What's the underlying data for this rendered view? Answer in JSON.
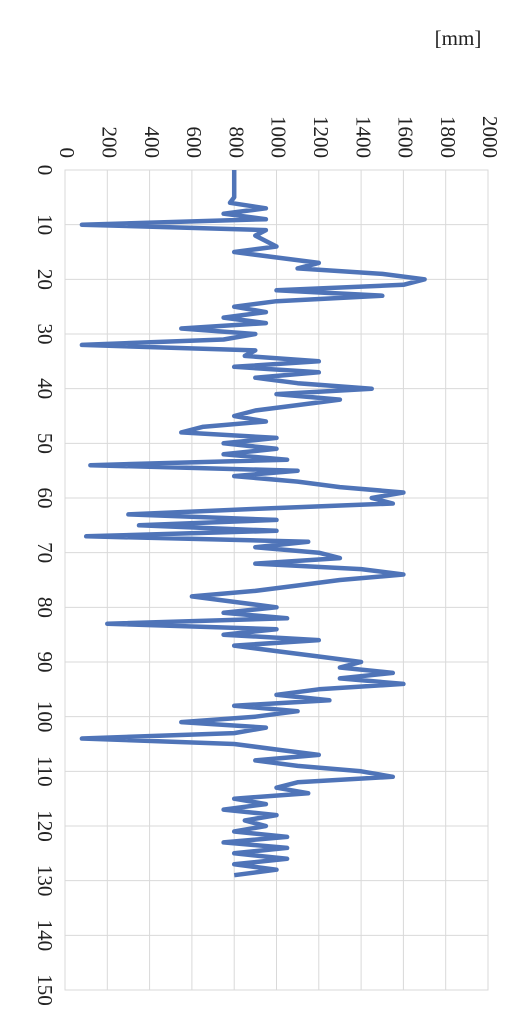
{
  "chart_data": {
    "type": "line",
    "y_label": "[mm]",
    "x": [
      0,
      5,
      6,
      7,
      8,
      9,
      10,
      11,
      12,
      14,
      15,
      17,
      18,
      19,
      20,
      21,
      22,
      23,
      24,
      25,
      26,
      27,
      28,
      29,
      30,
      31,
      32,
      33,
      34,
      35,
      36,
      37,
      38,
      39,
      40,
      41,
      42,
      43,
      44,
      45,
      46,
      47,
      48,
      49,
      50,
      51,
      52,
      53,
      54,
      55,
      56,
      57,
      58,
      59,
      60,
      61,
      62,
      63,
      64,
      65,
      66,
      67,
      68,
      69,
      70,
      71,
      72,
      73,
      74,
      75,
      76,
      77,
      78,
      79,
      80,
      81,
      82,
      83,
      84,
      85,
      86,
      87,
      88,
      89,
      90,
      91,
      92,
      93,
      94,
      95,
      96,
      97,
      98,
      99,
      100,
      101,
      102,
      103,
      104,
      105,
      106,
      107,
      108,
      109,
      110,
      111,
      112,
      113,
      114,
      115,
      116,
      117,
      118,
      119,
      120,
      121,
      122,
      123,
      124,
      125,
      126,
      127,
      128,
      129
    ],
    "series": [
      {
        "color": "#4f74b8",
        "values": [
          800,
          800,
          780,
          950,
          750,
          950,
          80,
          950,
          900,
          1000,
          800,
          1200,
          1100,
          1500,
          1700,
          1600,
          1000,
          1500,
          1000,
          800,
          950,
          750,
          950,
          550,
          900,
          750,
          80,
          900,
          850,
          1200,
          800,
          1200,
          900,
          1100,
          1450,
          1000,
          1300,
          1100,
          900,
          800,
          950,
          650,
          550,
          1000,
          750,
          1000,
          750,
          1050,
          120,
          1100,
          800,
          1100,
          1300,
          1600,
          1450,
          1550,
          900,
          300,
          1000,
          350,
          1000,
          100,
          1150,
          900,
          1200,
          1300,
          900,
          1400,
          1600,
          1300,
          1100,
          900,
          600,
          800,
          1000,
          750,
          1050,
          200,
          1000,
          750,
          1200,
          800,
          1000,
          1200,
          1400,
          1300,
          1550,
          1300,
          1600,
          1200,
          1000,
          1250,
          800,
          1100,
          900,
          550,
          950,
          800,
          80,
          800,
          1000,
          1200,
          900,
          1100,
          1400,
          1550,
          1100,
          1000,
          1150,
          800,
          950,
          750,
          1000,
          850,
          950,
          800,
          1050,
          750,
          1050,
          800,
          1050,
          800,
          1000,
          800
        ]
      }
    ],
    "xlim": [
      0,
      150
    ],
    "xticks": [
      0,
      10,
      20,
      30,
      40,
      50,
      60,
      70,
      80,
      90,
      100,
      110,
      120,
      130,
      140,
      150
    ],
    "ylim": [
      0,
      2000
    ],
    "yticks": [
      0,
      200,
      400,
      600,
      800,
      1000,
      1200,
      1400,
      1600,
      1800,
      2000
    ],
    "grid": true
  }
}
